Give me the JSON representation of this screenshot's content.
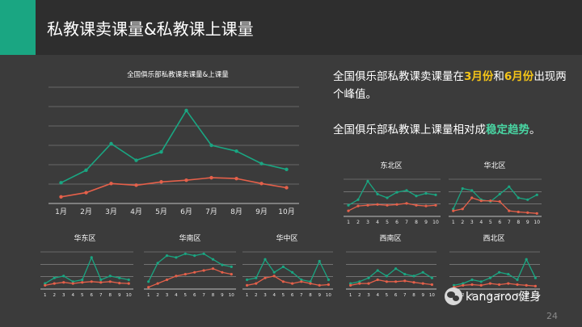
{
  "header": {
    "title": "私教课卖课量&私教课上课量"
  },
  "summary": {
    "line1": {
      "pre": "全国俱乐部私教课卖课量在",
      "hl1": "3月份",
      "mid": "和",
      "hl2": "6月份",
      "post": "出现两个峰值。"
    },
    "line2": {
      "pre": "全国俱乐部私教课上课量相对成",
      "hl": "稳定趋势",
      "post": "。"
    }
  },
  "footer": {
    "brand": "kangaroo健身",
    "page": "24"
  },
  "colors": {
    "sold": "#1aa682",
    "attended": "#e5604a",
    "grid": "#cfcfcf",
    "accent": "#1aa682",
    "background": "#3b3b3b"
  },
  "chart_data": [
    {
      "type": "line",
      "title": "全国俱乐部私教课卖课量&上课量",
      "categories": [
        "1月",
        "2月",
        "3月",
        "4月",
        "5月",
        "6月",
        "7月",
        "8月",
        "9月",
        "10月"
      ],
      "series": [
        {
          "values": [
            25,
            40,
            72,
            52,
            62,
            112,
            70,
            63,
            48,
            41
          ]
        },
        {
          "values": [
            8,
            13,
            24,
            22,
            26,
            28,
            31,
            30,
            24,
            19
          ]
        }
      ],
      "ylim": [
        0,
        140
      ],
      "grid": true
    },
    {
      "type": "line",
      "title": "东北区",
      "categories": [
        "1月",
        "2月",
        "3月",
        "4月",
        "5月",
        "6月",
        "7月",
        "8月",
        "9月",
        "10月"
      ],
      "series": [
        {
          "values": [
            30,
            45,
            95,
            60,
            50,
            65,
            70,
            55,
            62,
            58
          ]
        },
        {
          "values": [
            15,
            28,
            30,
            32,
            30,
            32,
            35,
            30,
            28,
            30
          ]
        }
      ],
      "ylim": [
        0,
        100
      ],
      "grid": true
    },
    {
      "type": "line",
      "title": "华北区",
      "categories": [
        "1月",
        "2月",
        "3月",
        "4月",
        "5月",
        "6月",
        "7月",
        "8月",
        "9月",
        "10月"
      ],
      "series": [
        {
          "values": [
            20,
            75,
            70,
            45,
            40,
            60,
            80,
            50,
            45,
            58
          ]
        },
        {
          "values": [
            15,
            20,
            50,
            42,
            42,
            40,
            15,
            12,
            10,
            8
          ]
        }
      ],
      "ylim": [
        0,
        100
      ],
      "grid": true
    },
    {
      "type": "line",
      "title": "华东区",
      "categories": [
        "1月",
        "2月",
        "3月",
        "4月",
        "5月",
        "6月",
        "7月",
        "8月",
        "9月",
        "10月"
      ],
      "series": [
        {
          "values": [
            15,
            30,
            35,
            20,
            25,
            85,
            25,
            35,
            30,
            25
          ]
        },
        {
          "values": [
            10,
            15,
            18,
            15,
            18,
            20,
            18,
            20,
            16,
            15
          ]
        }
      ],
      "ylim": [
        0,
        100
      ],
      "grid": true
    },
    {
      "type": "line",
      "title": "华南区",
      "categories": [
        "1月",
        "2月",
        "3月",
        "4月",
        "5月",
        "6月",
        "7月",
        "8月",
        "9月",
        "10月"
      ],
      "series": [
        {
          "values": [
            20,
            70,
            90,
            85,
            95,
            90,
            95,
            80,
            65,
            60
          ]
        },
        {
          "values": [
            5,
            15,
            25,
            35,
            40,
            45,
            50,
            55,
            45,
            40
          ]
        }
      ],
      "ylim": [
        0,
        100
      ],
      "grid": true
    },
    {
      "type": "line",
      "title": "华中区",
      "categories": [
        "1月",
        "2月",
        "3月",
        "4月",
        "5月",
        "6月",
        "7月",
        "8月",
        "9月",
        "10月"
      ],
      "series": [
        {
          "values": [
            25,
            30,
            80,
            45,
            60,
            45,
            25,
            20,
            75,
            25
          ]
        },
        {
          "values": [
            10,
            15,
            30,
            35,
            20,
            15,
            20,
            15,
            10,
            12
          ]
        }
      ],
      "ylim": [
        0,
        100
      ],
      "grid": true
    },
    {
      "type": "line",
      "title": "西南区",
      "categories": [
        "1月",
        "2月",
        "3月",
        "4月",
        "5月",
        "6月",
        "7月",
        "8月",
        "9月",
        "10月"
      ],
      "series": [
        {
          "values": [
            15,
            20,
            30,
            50,
            35,
            55,
            40,
            35,
            45,
            30
          ]
        },
        {
          "values": [
            10,
            15,
            15,
            25,
            20,
            20,
            22,
            18,
            15,
            12
          ]
        }
      ],
      "ylim": [
        0,
        100
      ],
      "grid": true
    },
    {
      "type": "line",
      "title": "西北区",
      "categories": [
        "1月",
        "2月",
        "3月",
        "4月",
        "5月",
        "6月",
        "7月",
        "8月",
        "9月",
        "10月"
      ],
      "series": [
        {
          "values": [
            10,
            15,
            25,
            20,
            30,
            45,
            40,
            25,
            80,
            30
          ]
        },
        {
          "values": [
            5,
            10,
            12,
            10,
            15,
            12,
            15,
            12,
            10,
            8
          ]
        }
      ],
      "ylim": [
        0,
        100
      ],
      "grid": true
    }
  ]
}
